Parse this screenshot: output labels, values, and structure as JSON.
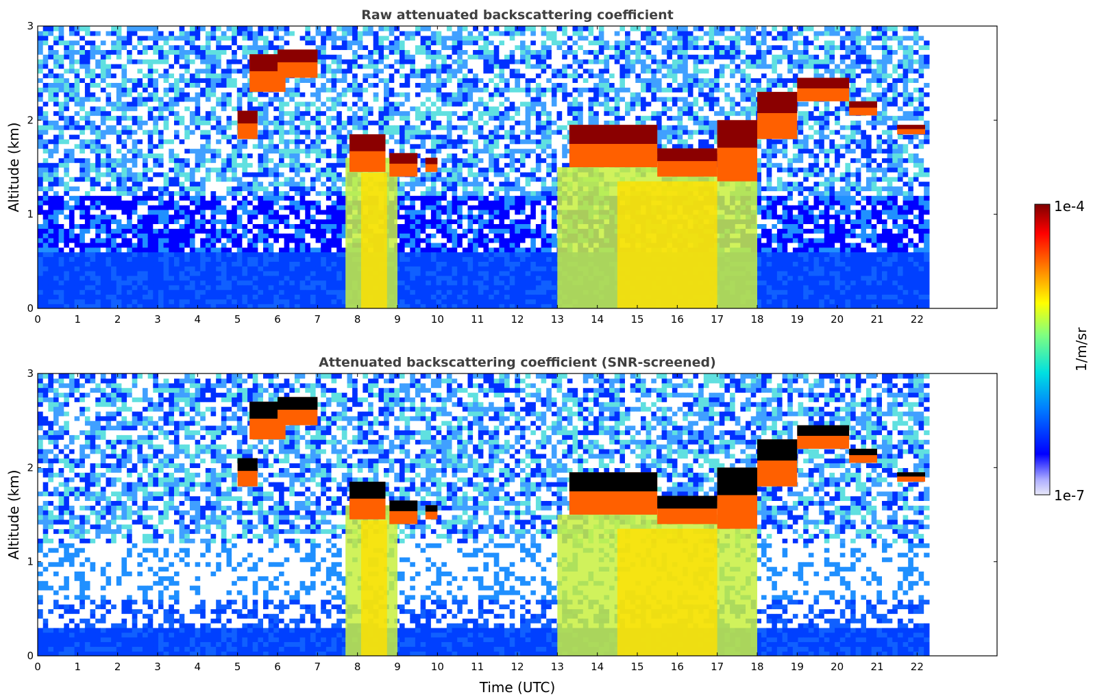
{
  "chart_data": [
    {
      "type": "heatmap",
      "title": "Raw attenuated backscattering coefficient",
      "xlabel": "",
      "ylabel": "Altitude (km)",
      "xlim": [
        0,
        24
      ],
      "ylim": [
        0,
        3
      ],
      "x_ticks": [
        "0",
        "1",
        "2",
        "3",
        "4",
        "5",
        "6",
        "7",
        "8",
        "9",
        "10",
        "11",
        "12",
        "13",
        "14",
        "15",
        "16",
        "17",
        "18",
        "19",
        "20",
        "21",
        "22"
      ],
      "y_ticks": [
        "0",
        "1",
        "2",
        "3"
      ],
      "data_end_time": 22.3,
      "screened": false
    },
    {
      "type": "heatmap",
      "title": "Attenuated backscattering coefficient (SNR-screened)",
      "xlabel": "Time (UTC)",
      "ylabel": "Altitude (km)",
      "xlim": [
        0,
        24
      ],
      "ylim": [
        0,
        3
      ],
      "x_ticks": [
        "0",
        "1",
        "2",
        "3",
        "4",
        "5",
        "6",
        "7",
        "8",
        "9",
        "10",
        "11",
        "12",
        "13",
        "14",
        "15",
        "16",
        "17",
        "18",
        "19",
        "20",
        "21",
        "22"
      ],
      "y_ticks": [
        "0",
        "1",
        "2",
        "3"
      ],
      "data_end_time": 22.3,
      "screened": true
    }
  ],
  "colorbar": {
    "label": "1/m/sr",
    "max_label": "1e-4",
    "min_label": "1e-7",
    "scale": "log",
    "colormap": [
      "#e8e8f8",
      "#b0b0ff",
      "#0000ff",
      "#0080ff",
      "#00e0e0",
      "#80ff80",
      "#ffff00",
      "#ff8000",
      "#ff0000",
      "#800000"
    ]
  },
  "cloud_layers": [
    {
      "t0": 5.3,
      "t1": 6.2,
      "z0": 2.3,
      "z1": 2.7
    },
    {
      "t0": 6.0,
      "t1": 7.0,
      "z0": 2.45,
      "z1": 2.75
    },
    {
      "t0": 5.0,
      "t1": 5.5,
      "z0": 1.8,
      "z1": 2.1
    },
    {
      "t0": 7.8,
      "t1": 8.7,
      "z0": 1.45,
      "z1": 1.85
    },
    {
      "t0": 8.8,
      "t1": 9.5,
      "z0": 1.4,
      "z1": 1.65
    },
    {
      "t0": 9.7,
      "t1": 10.0,
      "z0": 1.45,
      "z1": 1.6
    },
    {
      "t0": 13.3,
      "t1": 15.5,
      "z0": 1.5,
      "z1": 1.95
    },
    {
      "t0": 15.5,
      "t1": 17.0,
      "z0": 1.4,
      "z1": 1.7
    },
    {
      "t0": 17.0,
      "t1": 18.0,
      "z0": 1.35,
      "z1": 2.0
    },
    {
      "t0": 18.0,
      "t1": 19.0,
      "z0": 1.8,
      "z1": 2.3
    },
    {
      "t0": 19.0,
      "t1": 20.3,
      "z0": 2.2,
      "z1": 2.45
    },
    {
      "t0": 20.3,
      "t1": 21.0,
      "z0": 2.05,
      "z1": 2.2
    },
    {
      "t0": 21.5,
      "t1": 22.2,
      "z0": 1.85,
      "z1": 1.95
    }
  ],
  "precip_columns": [
    {
      "t0": 7.7,
      "t1": 9.0,
      "z1": 1.6
    },
    {
      "t0": 13.0,
      "t1": 18.0,
      "z1": 1.5
    }
  ]
}
